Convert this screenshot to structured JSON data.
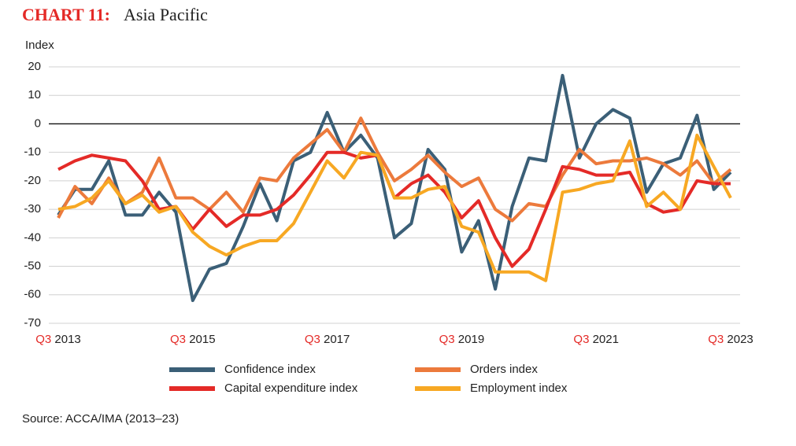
{
  "chart_data": {
    "type": "line",
    "title_label": "CHART 11:",
    "title": "Asia Pacific",
    "title_label_color": "#e42a27",
    "y_label": "Index",
    "source": "Source: ACCA/IMA (2013–23)",
    "categories": [
      "Q3 2013",
      null,
      null,
      null,
      null,
      null,
      null,
      null,
      "Q3 2015",
      null,
      null,
      null,
      null,
      null,
      null,
      null,
      "Q3 2017",
      null,
      null,
      null,
      null,
      null,
      null,
      null,
      "Q3 2019",
      null,
      null,
      null,
      null,
      null,
      null,
      null,
      "Q3 2021",
      null,
      null,
      null,
      null,
      null,
      null,
      null,
      "Q3 2023"
    ],
    "ylim": [
      -70,
      20
    ],
    "yticks": [
      -70,
      -60,
      -50,
      -40,
      -30,
      -20,
      -10,
      0,
      10,
      20
    ],
    "grid": true,
    "series": [
      {
        "name": "Confidence index",
        "color": "#3b5f77",
        "values": [
          -32,
          -23,
          -23,
          -13,
          -32,
          -32,
          -24,
          -31,
          -62,
          -51,
          -49,
          -36,
          -21,
          -34,
          -13,
          -10,
          4,
          -10,
          -4,
          -12,
          -40,
          -35,
          -9,
          -16,
          -45,
          -34,
          -58,
          -29,
          -12,
          -13,
          17,
          -12,
          0,
          5,
          2,
          -24,
          -14,
          -12,
          3,
          -23,
          -17
        ]
      },
      {
        "name": "Orders index",
        "color": "#ec7a3c",
        "values": [
          -33,
          -22,
          -28,
          -19,
          -28,
          -24,
          -12,
          -26,
          -26,
          -30,
          -24,
          -31,
          -19,
          -20,
          -12,
          -7,
          -2,
          -10,
          2,
          -10,
          -20,
          -16,
          -11,
          -17,
          -22,
          -19,
          -30,
          -34,
          -28,
          -29,
          -18,
          -9,
          -14,
          -13,
          -13,
          -12,
          -14,
          -18,
          -13,
          -21,
          -16
        ]
      },
      {
        "name": "Capital expenditure index",
        "color": "#e42a27",
        "values": [
          -16,
          -13,
          -11,
          -12,
          -13,
          -20,
          -30,
          -29,
          -37,
          -30,
          -36,
          -32,
          -32,
          -30,
          -25,
          -18,
          -10,
          -10,
          -12,
          -11,
          -26,
          -21,
          -18,
          -24,
          -33,
          -27,
          -40,
          -50,
          -44,
          -30,
          -15,
          -16,
          -18,
          -18,
          -17,
          -28,
          -31,
          -30,
          -20,
          -21,
          -21
        ]
      },
      {
        "name": "Employment index",
        "color": "#f7a823",
        "values": [
          -30,
          -29,
          -26,
          -20,
          -28,
          -25,
          -31,
          -29,
          -38,
          -43,
          -46,
          -43,
          -41,
          -41,
          -35,
          -24,
          -13,
          -19,
          -10,
          -11,
          -26,
          -26,
          -23,
          -22,
          -36,
          -38,
          -52,
          -52,
          -52,
          -55,
          -24,
          -23,
          -21,
          -20,
          -6,
          -29,
          -24,
          -30,
          -4,
          -15,
          -26
        ]
      }
    ]
  }
}
